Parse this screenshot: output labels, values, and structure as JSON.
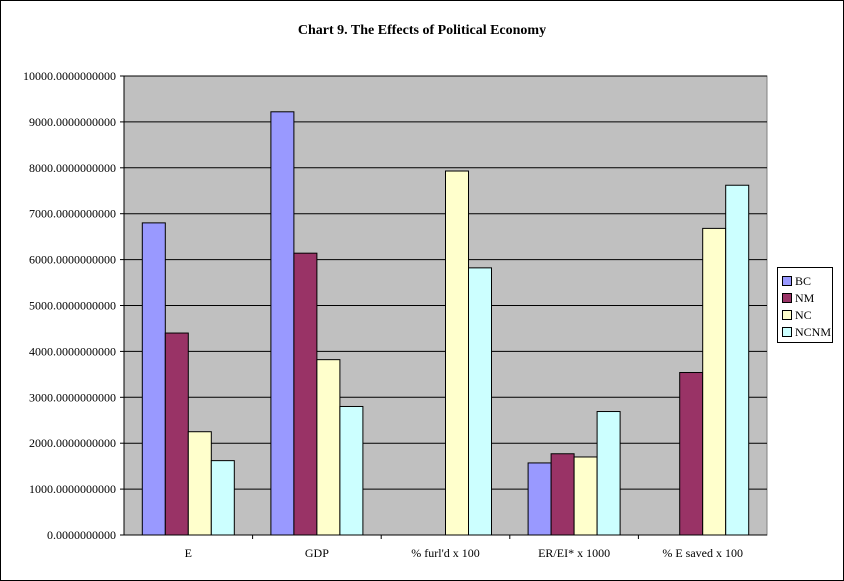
{
  "chart_data": {
    "type": "bar",
    "title": "Chart 9.  The Effects of Political Economy",
    "xlabel": "",
    "ylabel": "",
    "ylim": [
      0,
      10000
    ],
    "yticks": [
      "0.0000000000",
      "1000.0000000000",
      "2000.0000000000",
      "3000.0000000000",
      "4000.0000000000",
      "5000.0000000000",
      "6000.0000000000",
      "7000.0000000000",
      "8000.0000000000",
      "9000.0000000000",
      "10000.0000000000"
    ],
    "categories": [
      "E",
      "GDP",
      "% furl'd x 100",
      "ER/EI* x 1000",
      "% E saved x 100"
    ],
    "series": [
      {
        "name": "BC",
        "color": "#9999ff",
        "values": [
          6800,
          9220,
          0,
          1570,
          0
        ]
      },
      {
        "name": "NM",
        "color": "#993366",
        "values": [
          4400,
          6140,
          0,
          1770,
          3540
        ]
      },
      {
        "name": "NC",
        "color": "#ffffcc",
        "values": [
          2250,
          3820,
          7930,
          1700,
          6680
        ]
      },
      {
        "name": "NCNM",
        "color": "#ccffff",
        "values": [
          1620,
          2800,
          5820,
          2690,
          7620
        ]
      }
    ],
    "grid": true,
    "plot_background": "#c0c0c0",
    "legend_position": "right"
  }
}
